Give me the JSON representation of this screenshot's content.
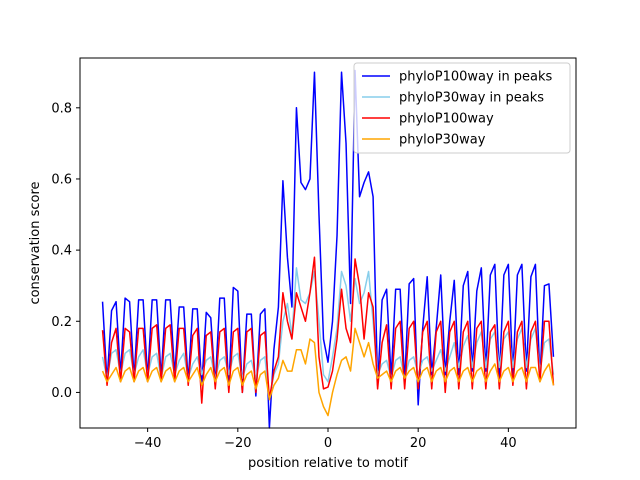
{
  "chart_data": {
    "type": "line",
    "title": "",
    "xlabel": "position relative to motif",
    "ylabel": "conservation score",
    "xlim": [
      -55,
      55
    ],
    "ylim": [
      -0.1,
      0.94
    ],
    "xticks": [
      -40,
      -20,
      0,
      20,
      40
    ],
    "yticks": [
      0.0,
      0.2,
      0.4,
      0.6,
      0.8
    ],
    "xtick_labels": [
      "−40",
      "−20",
      "0",
      "20",
      "40"
    ],
    "ytick_labels": [
      "0.0",
      "0.2",
      "0.4",
      "0.6",
      "0.8"
    ],
    "grid": false,
    "legend_position": "top-right",
    "x": [
      -50,
      -49,
      -48,
      -47,
      -46,
      -45,
      -44,
      -43,
      -42,
      -41,
      -40,
      -39,
      -38,
      -37,
      -36,
      -35,
      -34,
      -33,
      -32,
      -31,
      -30,
      -29,
      -28,
      -27,
      -26,
      -25,
      -24,
      -23,
      -22,
      -21,
      -20,
      -19,
      -18,
      -17,
      -16,
      -15,
      -14,
      -13,
      -12,
      -11,
      -10,
      -9,
      -8,
      -7,
      -6,
      -5,
      -4,
      -3,
      -2,
      -1,
      0,
      1,
      2,
      3,
      4,
      5,
      6,
      7,
      8,
      9,
      10,
      11,
      12,
      13,
      14,
      15,
      16,
      17,
      18,
      19,
      20,
      21,
      22,
      23,
      24,
      25,
      26,
      27,
      28,
      29,
      30,
      31,
      32,
      33,
      34,
      35,
      36,
      37,
      38,
      39,
      40,
      41,
      42,
      43,
      44,
      45,
      46,
      47,
      48,
      49,
      50
    ],
    "series": [
      {
        "name": "phyloP100way in peaks",
        "color": "#0000ff",
        "values": [
          0.255,
          0.03,
          0.23,
          0.255,
          0.05,
          0.265,
          0.255,
          0.04,
          0.26,
          0.26,
          0.04,
          0.26,
          0.26,
          0.04,
          0.26,
          0.26,
          0.05,
          0.24,
          0.24,
          0.03,
          0.235,
          0.235,
          0.02,
          0.225,
          0.21,
          0.02,
          0.265,
          0.265,
          0.01,
          0.295,
          0.285,
          0.0,
          0.22,
          0.22,
          -0.01,
          0.22,
          0.235,
          -0.1,
          0.12,
          0.24,
          0.595,
          0.38,
          0.24,
          0.8,
          0.59,
          0.57,
          0.6,
          0.9,
          0.5,
          0.15,
          0.085,
          0.2,
          0.44,
          0.9,
          0.7,
          0.25,
          0.905,
          0.55,
          0.59,
          0.62,
          0.55,
          0.02,
          0.26,
          0.29,
          0.04,
          0.29,
          0.29,
          0.03,
          0.305,
          0.32,
          -0.035,
          0.18,
          0.325,
          0.05,
          0.18,
          0.33,
          0.05,
          0.2,
          0.315,
          0.05,
          0.3,
          0.34,
          0.06,
          0.285,
          0.35,
          0.06,
          0.33,
          0.36,
          0.04,
          0.33,
          0.36,
          0.05,
          0.33,
          0.36,
          0.06,
          0.325,
          0.36,
          0.04,
          0.3,
          0.305,
          0.1
        ]
      },
      {
        "name": "phyloP30way in peaks",
        "color": "#87ceeb",
        "values": [
          0.1,
          0.04,
          0.11,
          0.12,
          0.05,
          0.11,
          0.12,
          0.05,
          0.1,
          0.12,
          0.05,
          0.1,
          0.11,
          0.04,
          0.1,
          0.11,
          0.05,
          0.09,
          0.11,
          0.04,
          0.08,
          0.1,
          0.05,
          0.09,
          0.1,
          0.04,
          0.09,
          0.1,
          0.05,
          0.1,
          0.11,
          0.04,
          0.08,
          0.09,
          0.04,
          0.09,
          0.1,
          -0.02,
          0.05,
          0.08,
          0.2,
          0.25,
          0.16,
          0.35,
          0.26,
          0.25,
          0.28,
          0.34,
          0.2,
          0.05,
          0.03,
          0.1,
          0.18,
          0.34,
          0.3,
          0.2,
          0.32,
          0.25,
          0.28,
          0.34,
          0.2,
          0.05,
          0.08,
          0.09,
          0.04,
          0.09,
          0.1,
          0.04,
          0.09,
          0.1,
          0.05,
          0.09,
          0.1,
          0.06,
          0.09,
          0.12,
          0.06,
          0.1,
          0.14,
          0.07,
          0.13,
          0.16,
          0.07,
          0.14,
          0.17,
          0.07,
          0.15,
          0.17,
          0.07,
          0.15,
          0.17,
          0.07,
          0.15,
          0.18,
          0.07,
          0.15,
          0.18,
          0.06,
          0.14,
          0.15,
          0.05
        ]
      },
      {
        "name": "phyloP100way",
        "color": "#ff0000",
        "values": [
          0.175,
          0.02,
          0.14,
          0.18,
          0.03,
          0.18,
          0.17,
          0.03,
          0.18,
          0.18,
          0.03,
          0.18,
          0.19,
          0.03,
          0.18,
          0.19,
          0.03,
          0.18,
          0.18,
          0.02,
          0.16,
          0.18,
          -0.03,
          0.16,
          0.17,
          0.01,
          0.17,
          0.18,
          0.0,
          0.17,
          0.18,
          0.0,
          0.17,
          0.18,
          0.0,
          0.16,
          0.17,
          -0.02,
          0.06,
          0.1,
          0.28,
          0.2,
          0.15,
          0.28,
          0.24,
          0.2,
          0.28,
          0.38,
          0.1,
          0.01,
          0.015,
          0.06,
          0.15,
          0.29,
          0.18,
          0.14,
          0.375,
          0.3,
          0.15,
          0.28,
          0.24,
          0.01,
          0.14,
          0.19,
          0.01,
          0.18,
          0.2,
          0.01,
          0.18,
          0.2,
          0.01,
          0.17,
          0.2,
          0.01,
          0.17,
          0.2,
          0.0,
          0.17,
          0.2,
          0.01,
          0.17,
          0.2,
          0.01,
          0.18,
          0.2,
          0.01,
          0.17,
          0.19,
          0.01,
          0.17,
          0.2,
          0.02,
          0.17,
          0.2,
          0.01,
          0.17,
          0.2,
          0.03,
          0.2,
          0.2,
          0.02
        ]
      },
      {
        "name": "phyloP30way",
        "color": "#ffa500",
        "values": [
          0.06,
          0.03,
          0.05,
          0.07,
          0.03,
          0.06,
          0.07,
          0.03,
          0.06,
          0.07,
          0.03,
          0.06,
          0.07,
          0.03,
          0.06,
          0.07,
          0.03,
          0.06,
          0.07,
          0.03,
          0.05,
          0.07,
          0.02,
          0.05,
          0.07,
          0.03,
          0.06,
          0.07,
          0.02,
          0.06,
          0.07,
          0.02,
          0.05,
          0.06,
          0.01,
          0.05,
          0.06,
          -0.02,
          0.02,
          0.04,
          0.09,
          0.06,
          0.06,
          0.12,
          0.12,
          0.08,
          0.15,
          0.14,
          0.0,
          -0.04,
          -0.065,
          0.0,
          0.05,
          0.09,
          0.1,
          0.06,
          0.18,
          0.14,
          0.1,
          0.14,
          0.08,
          0.04,
          0.05,
          0.06,
          0.03,
          0.06,
          0.07,
          0.04,
          0.06,
          0.07,
          0.03,
          0.06,
          0.07,
          0.03,
          0.06,
          0.07,
          0.03,
          0.06,
          0.07,
          0.03,
          0.06,
          0.07,
          0.03,
          0.06,
          0.07,
          0.03,
          0.06,
          0.08,
          0.03,
          0.06,
          0.07,
          0.03,
          0.06,
          0.07,
          0.03,
          0.07,
          0.07,
          0.03,
          0.06,
          0.08,
          0.02
        ]
      }
    ]
  }
}
